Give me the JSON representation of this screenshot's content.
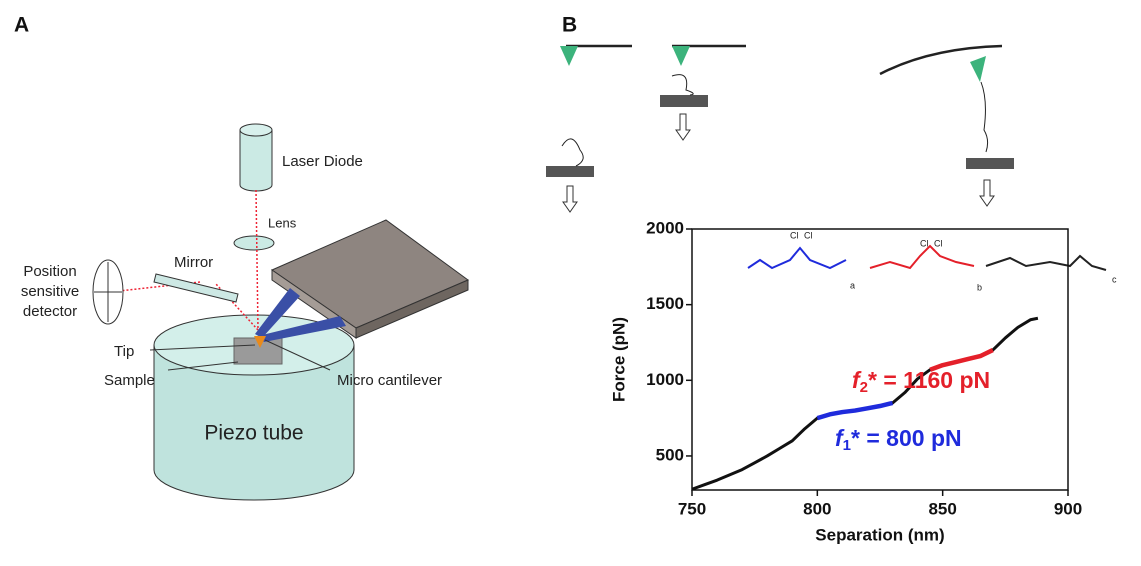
{
  "panel_a": {
    "label": "A",
    "laser": "Laser Diode",
    "lens": "Lens",
    "mirror": "Mirror",
    "detector": [
      "Position",
      "sensitive",
      "detector"
    ],
    "tip": "Tip",
    "cantilever": "Micro cantilever",
    "sample": "Sample",
    "piezo": "Piezo tube"
  },
  "panel_b": {
    "label": "B",
    "structure_labels": [
      "Cl",
      "Cl",
      "Cl",
      "Cl",
      "a",
      "b",
      "c"
    ]
  },
  "chart_data": {
    "type": "line",
    "x_label": "Separation (nm)",
    "y_label": "Force (pN)",
    "x": [
      750,
      755,
      760,
      765,
      770,
      775,
      780,
      785,
      790,
      795,
      800,
      805,
      810,
      815,
      820,
      825,
      830,
      835,
      840,
      845,
      850,
      855,
      860,
      865,
      870,
      875,
      880,
      885,
      888
    ],
    "series": [
      {
        "color": "#111111",
        "values": [
          280,
          310,
          340,
          375,
          410,
          455,
          500,
          550,
          600,
          680,
          750,
          775,
          790,
          800,
          815,
          830,
          850,
          920,
          1010,
          1070,
          1100,
          1120,
          1140,
          1160,
          1200,
          1280,
          1350,
          1400,
          1410
        ]
      },
      {
        "color": "#1f2bdc",
        "values": [
          null,
          null,
          null,
          null,
          null,
          null,
          null,
          null,
          null,
          null,
          750,
          775,
          790,
          800,
          815,
          830,
          850,
          null,
          null,
          null,
          null,
          null,
          null,
          null,
          null,
          null,
          null,
          null,
          null
        ]
      },
      {
        "color": "#e4202a",
        "values": [
          null,
          null,
          null,
          null,
          null,
          null,
          null,
          null,
          null,
          null,
          null,
          null,
          null,
          null,
          null,
          null,
          null,
          null,
          null,
          1070,
          1100,
          1120,
          1140,
          1160,
          1200,
          null,
          null,
          null,
          null
        ]
      }
    ],
    "annotations": [
      {
        "parts": [
          "f",
          "1",
          "* = 800 pN"
        ],
        "color": "#1f2bdc"
      },
      {
        "parts": [
          "f",
          "2",
          "* = 1160 pN"
        ],
        "color": "#e4202a"
      }
    ],
    "xlim": [
      750,
      900
    ],
    "ylim": [
      275,
      2000
    ],
    "xticks": [
      750,
      800,
      850,
      900
    ],
    "yticks": [
      500,
      1000,
      1500,
      2000
    ]
  }
}
